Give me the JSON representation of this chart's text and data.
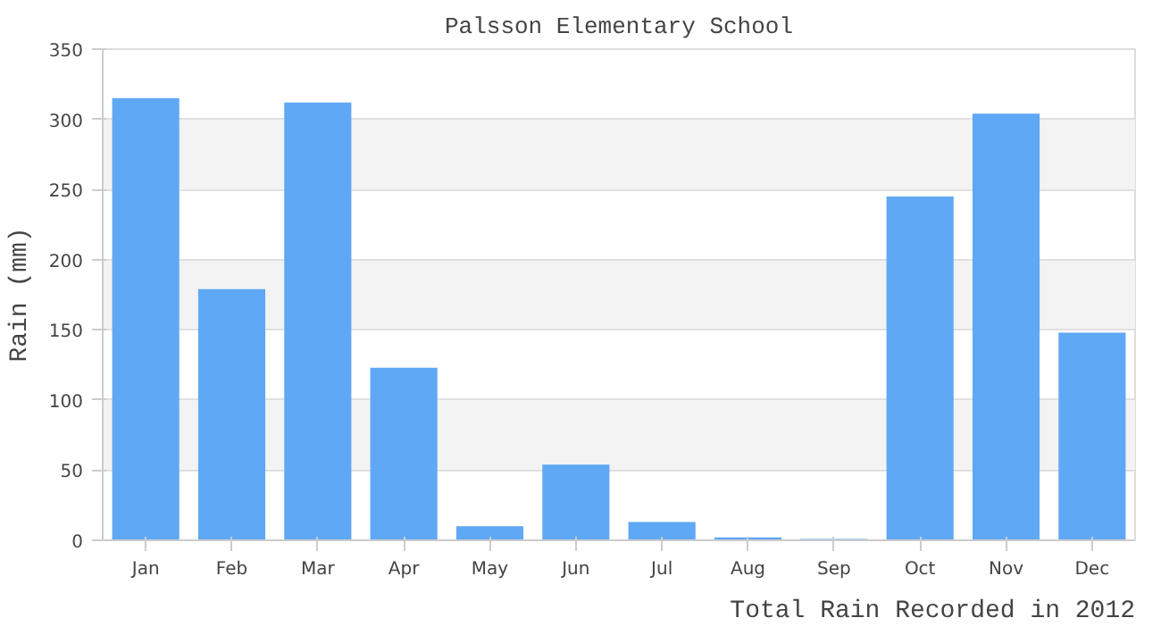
{
  "chart_data": {
    "type": "bar",
    "title": "Palsson Elementary School",
    "ylabel": "Rain (mm)",
    "annotations": [
      "Total Rain Recorded in 2012"
    ],
    "categories": [
      "Jan",
      "Feb",
      "Mar",
      "Apr",
      "May",
      "Jun",
      "Jul",
      "Aug",
      "Sep",
      "Oct",
      "Nov",
      "Dec"
    ],
    "values": [
      315,
      179,
      312,
      123,
      10,
      54,
      13,
      2,
      1,
      245,
      304,
      148
    ],
    "color": "#5fa8f5",
    "ylim": [
      0,
      350
    ],
    "yticks": [
      0,
      50,
      100,
      150,
      200,
      250,
      300,
      350
    ],
    "grid": "y"
  }
}
